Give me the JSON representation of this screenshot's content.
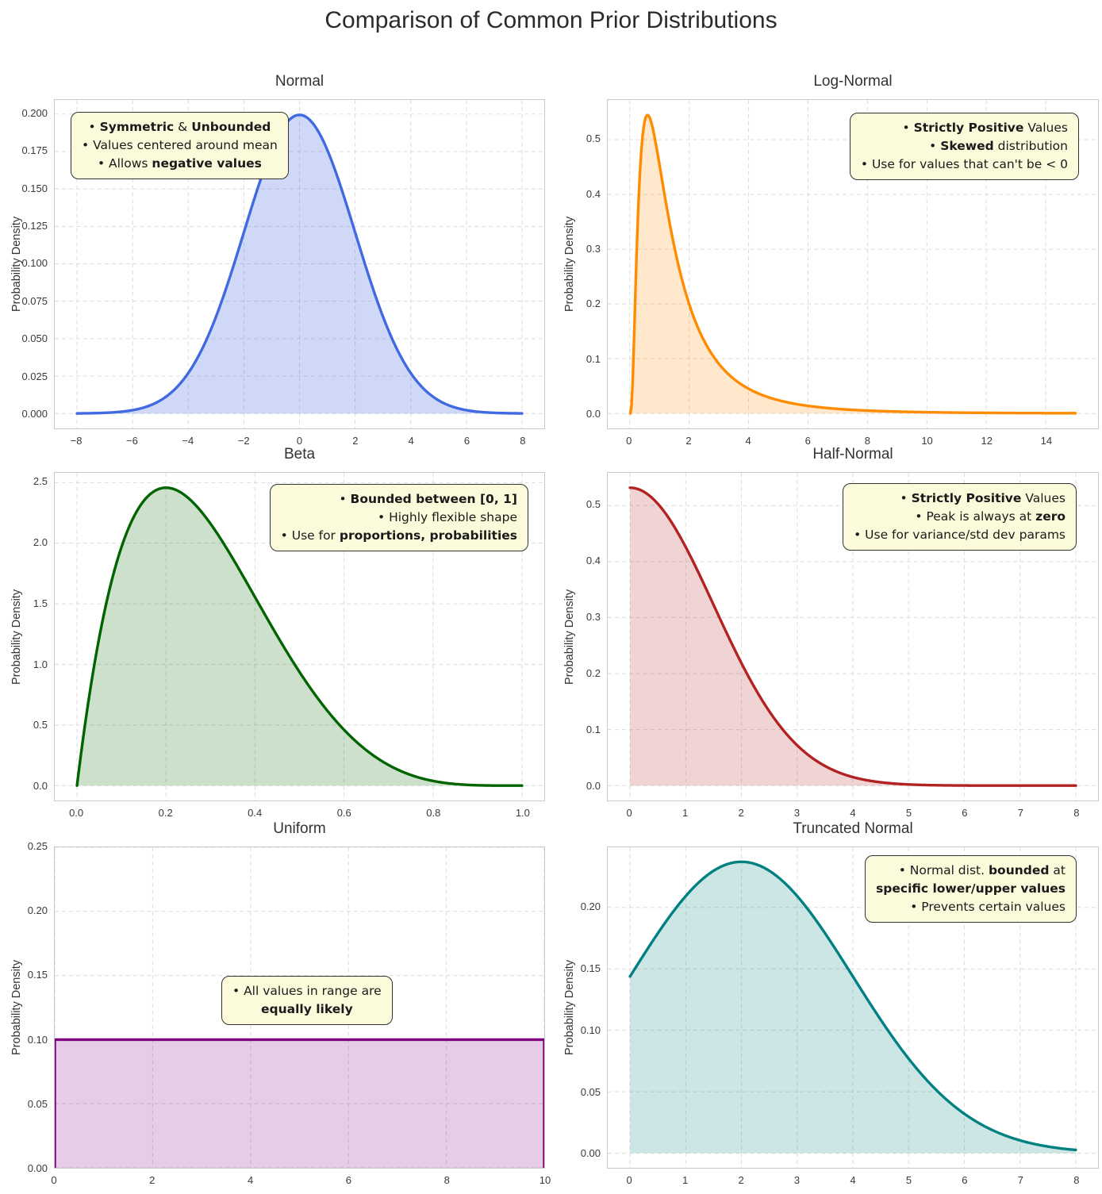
{
  "title": "Comparison of Common Prior Distributions",
  "chart_data": [
    {
      "title": "Normal",
      "type": "area",
      "dist": "normal",
      "params": {
        "mu": 0,
        "sigma": 2
      },
      "color": "#4169E1",
      "fill_alpha": 0.25,
      "draw_range": [
        -8,
        8
      ],
      "xlim": [
        -8.8,
        8.8
      ],
      "ylim": [
        -0.00997,
        0.20944
      ],
      "xticks": [
        -8,
        -6,
        -4,
        -2,
        0,
        2,
        4,
        6,
        8
      ],
      "xtick_labels": [
        "−8",
        "−6",
        "−4",
        "−2",
        "0",
        "2",
        "4",
        "6",
        "8"
      ],
      "yticks": [
        0,
        0.025,
        0.05,
        0.075,
        0.1,
        0.125,
        0.15,
        0.175,
        0.2
      ],
      "ytick_labels": [
        "0.000",
        "0.025",
        "0.050",
        "0.075",
        "0.100",
        "0.125",
        "0.150",
        "0.175",
        "0.200"
      ],
      "ylabel": "Probability Density",
      "annotation": {
        "align": "center",
        "lines": [
          [
            {
              "t": "• ",
              "b": 0
            },
            {
              "t": "Symmetric",
              "b": 1
            },
            {
              "t": " & ",
              "b": 0
            },
            {
              "t": "Unbounded",
              "b": 1
            }
          ],
          [
            {
              "t": "• Values centered around mean",
              "b": 0
            }
          ],
          [
            {
              "t": "• Allows ",
              "b": 0
            },
            {
              "t": "negative values",
              "b": 1
            }
          ]
        ]
      }
    },
    {
      "title": "Log-Normal",
      "type": "area",
      "dist": "lognormal",
      "params": {
        "mu": 0.2115,
        "sigma": 0.85
      },
      "color": "#FF8C00",
      "fill_alpha": 0.2,
      "draw_range": [
        0.02,
        15
      ],
      "xlim": [
        -0.74,
        15.76
      ],
      "ylim": [
        -0.0273,
        0.5726
      ],
      "xticks": [
        0,
        2,
        4,
        6,
        8,
        10,
        12,
        14
      ],
      "xtick_labels": [
        "0",
        "2",
        "4",
        "6",
        "8",
        "10",
        "12",
        "14"
      ],
      "yticks": [
        0,
        0.1,
        0.2,
        0.3,
        0.4,
        0.5
      ],
      "ytick_labels": [
        "0.0",
        "0.1",
        "0.2",
        "0.3",
        "0.4",
        "0.5"
      ],
      "ylabel": "Probability Density",
      "annotation": {
        "align": "right",
        "lines": [
          [
            {
              "t": "• ",
              "b": 0
            },
            {
              "t": "Strictly Positive",
              "b": 1
            },
            {
              "t": " Values",
              "b": 0
            }
          ],
          [
            {
              "t": "• ",
              "b": 0
            },
            {
              "t": "Skewed",
              "b": 1
            },
            {
              "t": " distribution",
              "b": 0
            }
          ],
          [
            {
              "t": "• Use for values that can't be < 0",
              "b": 0
            }
          ]
        ]
      }
    },
    {
      "title": "Beta",
      "type": "area",
      "dist": "beta",
      "params": {
        "a": 2,
        "b": 5
      },
      "color": "#006400",
      "fill_alpha": 0.2,
      "draw_range": [
        0,
        1
      ],
      "xlim": [
        -0.05,
        1.05
      ],
      "ylim": [
        -0.1229,
        2.5805
      ],
      "xticks": [
        0,
        0.2,
        0.4,
        0.6,
        0.8,
        1.0
      ],
      "xtick_labels": [
        "0.0",
        "0.2",
        "0.4",
        "0.6",
        "0.8",
        "1.0"
      ],
      "yticks": [
        0,
        0.5,
        1.0,
        1.5,
        2.0,
        2.5
      ],
      "ytick_labels": [
        "0.0",
        "0.5",
        "1.0",
        "1.5",
        "2.0",
        "2.5"
      ],
      "ylabel": "Probability Density",
      "annotation": {
        "align": "right",
        "lines": [
          [
            {
              "t": "• ",
              "b": 0
            },
            {
              "t": "Bounded between [0, 1]",
              "b": 1
            }
          ],
          [
            {
              "t": "• Highly flexible shape",
              "b": 0
            }
          ],
          [
            {
              "t": "• Use for ",
              "b": 0
            },
            {
              "t": "proportions, probabilities",
              "b": 1
            }
          ]
        ]
      }
    },
    {
      "title": "Half-Normal",
      "type": "area",
      "dist": "halfnormal",
      "params": {
        "sigma": 1.5
      },
      "color": "#B22222",
      "fill_alpha": 0.2,
      "draw_range": [
        0,
        8
      ],
      "xlim": [
        -0.4,
        8.4
      ],
      "ylim": [
        -0.0266,
        0.5585
      ],
      "xticks": [
        0,
        1,
        2,
        3,
        4,
        5,
        6,
        7,
        8
      ],
      "xtick_labels": [
        "0",
        "1",
        "2",
        "3",
        "4",
        "5",
        "6",
        "7",
        "8"
      ],
      "yticks": [
        0,
        0.1,
        0.2,
        0.3,
        0.4,
        0.5
      ],
      "ytick_labels": [
        "0.0",
        "0.1",
        "0.2",
        "0.3",
        "0.4",
        "0.5"
      ],
      "ylabel": "Probability Density",
      "annotation": {
        "align": "right",
        "lines": [
          [
            {
              "t": "• ",
              "b": 0
            },
            {
              "t": "Strictly Positive",
              "b": 1
            },
            {
              "t": " Values",
              "b": 0
            }
          ],
          [
            {
              "t": "• Peak is always at ",
              "b": 0
            },
            {
              "t": "zero",
              "b": 1
            }
          ],
          [
            {
              "t": "• Use for variance/std dev params",
              "b": 0
            }
          ]
        ]
      }
    },
    {
      "title": "Uniform",
      "type": "area",
      "dist": "uniform",
      "params": {
        "lo": 0,
        "hi": 10,
        "value": 0.1
      },
      "color": "#800080",
      "fill_alpha": 0.2,
      "draw_range": [
        0,
        10
      ],
      "xlim": [
        0,
        10
      ],
      "ylim": [
        0,
        0.25
      ],
      "xticks": [
        0,
        2,
        4,
        6,
        8,
        10
      ],
      "xtick_labels": [
        "0",
        "2",
        "4",
        "6",
        "8",
        "10"
      ],
      "yticks": [
        0,
        0.05,
        0.1,
        0.15,
        0.2,
        0.25
      ],
      "ytick_labels": [
        "0.00",
        "0.05",
        "0.10",
        "0.15",
        "0.20",
        "0.25"
      ],
      "ylabel": "Probability Density",
      "annotation": {
        "align": "center",
        "lines": [
          [
            {
              "t": "• All values in range are",
              "b": 0
            }
          ],
          [
            {
              "t": "equally likely",
              "b": 1
            }
          ]
        ]
      }
    },
    {
      "title": "Truncated Normal",
      "type": "area",
      "dist": "truncnorm",
      "params": {
        "mu": 2,
        "sigma": 2,
        "a": 0
      },
      "color": "#008080",
      "fill_alpha": 0.2,
      "draw_range": [
        0,
        8
      ],
      "xlim": [
        -0.4,
        8.4
      ],
      "ylim": [
        -0.0119,
        0.2489
      ],
      "xticks": [
        0,
        1,
        2,
        3,
        4,
        5,
        6,
        7,
        8
      ],
      "xtick_labels": [
        "0",
        "1",
        "2",
        "3",
        "4",
        "5",
        "6",
        "7",
        "8"
      ],
      "yticks": [
        0,
        0.05,
        0.1,
        0.15,
        0.2
      ],
      "ytick_labels": [
        "0.00",
        "0.05",
        "0.10",
        "0.15",
        "0.20"
      ],
      "ylabel": "Probability Density",
      "annotation": {
        "align": "right",
        "lines": [
          [
            {
              "t": "• Normal dist. ",
              "b": 0
            },
            {
              "t": "bounded",
              "b": 1
            },
            {
              "t": " at",
              "b": 0
            }
          ],
          [
            {
              "t": "specific lower/upper values",
              "b": 1
            }
          ],
          [
            {
              "t": "• Prevents certain values",
              "b": 0
            }
          ]
        ]
      }
    }
  ]
}
